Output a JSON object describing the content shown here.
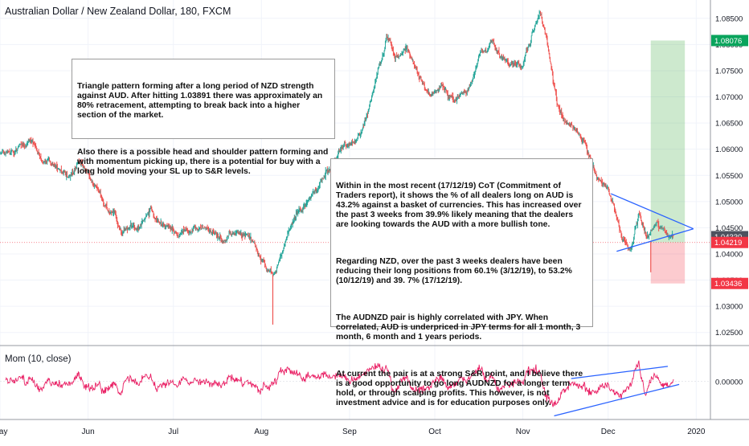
{
  "title": "Australian Dollar / New Zealand Dollar, 180, FXCM",
  "indicator_label": "Mom (10, close)",
  "colors": {
    "up": "#26a69a",
    "down": "#ef5350",
    "momentum": "#e91e63",
    "trend_line": "#2962ff",
    "green_badge": "#09a45c",
    "red_badge": "#f23645",
    "gray_badge": "#4c525e"
  },
  "annotations": {
    "note1": [
      "Triangle pattern forming after a long period of NZD strength against AUD. After hitting 1.03891 there was approximately an 80% retracement, attempting to break back into a higher section of the market.",
      "Also there is a possible head and shoulder pattern forming and with momentum picking up, there is a potential for buy with a long hold moving your SL up to S&R levels."
    ],
    "note2": [
      "Within in the most recent (17/12/19) CoT (Commitment of Traders report), it shows the % of all dealers long on AUD is 43.2% against a basket of currencies. This has increased over the past 3 weeks from 39.9% likely meaning that the dealers are looking towards the AUD with a more bullish tone.",
      "Regarding NZD, over the past 3 weeks dealers have been reducing their long positions from 60.1% (3/12/19), to 53.2% (10/12/19) and 39. 7% (17/12/19).",
      "The AUDNZD pair is highly correlated with JPY. When correlated, AUD is underpriced in JPY terms for all 1 month, 3 month, 6 month and 1 years periods.",
      "At current the pair is at a strong S&R point, and I believe there is a good opportunity to go long AUDNZD for a longer term hold, or through scalping profits. This however, is not investment advice and is for education purposes only."
    ]
  },
  "chart_data": [
    {
      "type": "candlestick",
      "title": "Australian Dollar / New Zealand Dollar, 180, FXCM",
      "x_axis": {
        "type": "date",
        "range": [
          "2019-05-01",
          "2020-01-06"
        ],
        "tick_labels": [
          "May",
          "Jun",
          "Jul",
          "Aug",
          "Sep",
          "Oct",
          "Nov",
          "Dec",
          "2020"
        ],
        "tick_dates": [
          "2019-05-01",
          "2019-06-01",
          "2019-07-01",
          "2019-08-01",
          "2019-09-01",
          "2019-10-01",
          "2019-11-01",
          "2019-12-01",
          "2020-01-01"
        ]
      },
      "y_axis": {
        "range": [
          1.0225,
          1.0885
        ],
        "tick_labels": [
          "1.08500",
          "1.08000",
          "1.07500",
          "1.07000",
          "1.06500",
          "1.06000",
          "1.05500",
          "1.05000",
          "1.04500",
          "1.04000",
          "1.03500",
          "1.03000",
          "1.02500"
        ],
        "tick_values": [
          1.085,
          1.08,
          1.075,
          1.07,
          1.065,
          1.06,
          1.055,
          1.05,
          1.045,
          1.04,
          1.035,
          1.03,
          1.025
        ],
        "position": "right"
      },
      "price_path": [
        [
          "2019-05-01",
          1.0595
        ],
        [
          "2019-05-06",
          1.0585
        ],
        [
          "2019-05-11",
          1.0625
        ],
        [
          "2019-05-16",
          1.058
        ],
        [
          "2019-05-21",
          1.0565
        ],
        [
          "2019-05-25",
          1.0545
        ],
        [
          "2019-05-29",
          1.0565
        ],
        [
          "2019-06-03",
          1.053
        ],
        [
          "2019-06-08",
          1.0485
        ],
        [
          "2019-06-13",
          1.0445
        ],
        [
          "2019-06-18",
          1.0455
        ],
        [
          "2019-06-23",
          1.0495
        ],
        [
          "2019-06-28",
          1.0455
        ],
        [
          "2019-07-03",
          1.0435
        ],
        [
          "2019-07-08",
          1.0455
        ],
        [
          "2019-07-13",
          1.0445
        ],
        [
          "2019-07-18",
          1.0425
        ],
        [
          "2019-07-23",
          1.0435
        ],
        [
          "2019-07-28",
          1.0445
        ],
        [
          "2019-08-02",
          1.039
        ],
        [
          "2019-08-05",
          1.0345
        ],
        [
          "2019-08-07",
          1.038
        ],
        [
          "2019-08-10",
          1.043
        ],
        [
          "2019-08-14",
          1.0485
        ],
        [
          "2019-08-19",
          1.051
        ],
        [
          "2019-08-24",
          1.0555
        ],
        [
          "2019-08-29",
          1.0595
        ],
        [
          "2019-09-03",
          1.062
        ],
        [
          "2019-09-07",
          1.0665
        ],
        [
          "2019-09-11",
          1.0755
        ],
        [
          "2019-09-14",
          1.0825
        ],
        [
          "2019-09-17",
          1.0775
        ],
        [
          "2019-09-21",
          1.079
        ],
        [
          "2019-09-25",
          1.0745
        ],
        [
          "2019-09-29",
          1.0705
        ],
        [
          "2019-10-03",
          1.0725
        ],
        [
          "2019-10-08",
          1.069
        ],
        [
          "2019-10-13",
          1.0725
        ],
        [
          "2019-10-17",
          1.0775
        ],
        [
          "2019-10-21",
          1.0805
        ],
        [
          "2019-10-24",
          1.0775
        ],
        [
          "2019-10-28",
          1.0765
        ],
        [
          "2019-11-01",
          1.0755
        ],
        [
          "2019-11-04",
          1.082
        ],
        [
          "2019-11-07",
          1.0855
        ],
        [
          "2019-11-10",
          1.0795
        ],
        [
          "2019-11-13",
          1.0685
        ],
        [
          "2019-11-16",
          1.065
        ],
        [
          "2019-11-21",
          1.0625
        ],
        [
          "2019-11-26",
          1.0565
        ],
        [
          "2019-11-30",
          1.053
        ],
        [
          "2019-12-03",
          1.0495
        ],
        [
          "2019-12-06",
          1.043
        ],
        [
          "2019-12-09",
          1.0405
        ],
        [
          "2019-12-12",
          1.0475
        ],
        [
          "2019-12-15",
          1.0425
        ],
        [
          "2019-12-18",
          1.0455
        ],
        [
          "2019-12-21",
          1.044
        ],
        [
          "2019-12-24",
          1.0433
        ]
      ],
      "price_lines": [
        {
          "value": 1.08076,
          "label": "1.08076",
          "badge": "green"
        },
        {
          "value": 1.0433,
          "label": "1.04330",
          "badge": "gray"
        },
        {
          "value": 1.04219,
          "label": "1.04219",
          "badge": "red"
        },
        {
          "value": 1.03436,
          "label": "1.03436",
          "badge": "red"
        }
      ],
      "position_tool": {
        "start": "2019-12-16",
        "end": "2019-12-28",
        "entry": 1.04219,
        "target": 1.08076,
        "stop": 1.03436
      },
      "triangle": {
        "upper": [
          [
            "2019-12-02",
            1.0515
          ],
          [
            "2019-12-31",
            1.0448
          ]
        ],
        "lower": [
          [
            "2019-12-04",
            1.0405
          ],
          [
            "2019-12-31",
            1.0448
          ]
        ]
      }
    },
    {
      "type": "line",
      "title": "Mom (10, close)",
      "y_axis": {
        "range": [
          -0.0105,
          0.0095
        ],
        "tick_labels": [
          "0.00000"
        ],
        "tick_values": [
          0
        ],
        "position": "right"
      },
      "channel": {
        "upper": [
          [
            "2019-11-18",
            0.0008
          ],
          [
            "2019-12-22",
            0.0042
          ]
        ],
        "lower": [
          [
            "2019-11-12",
            -0.0095
          ],
          [
            "2019-12-26",
            -0.0008
          ]
        ]
      }
    }
  ]
}
